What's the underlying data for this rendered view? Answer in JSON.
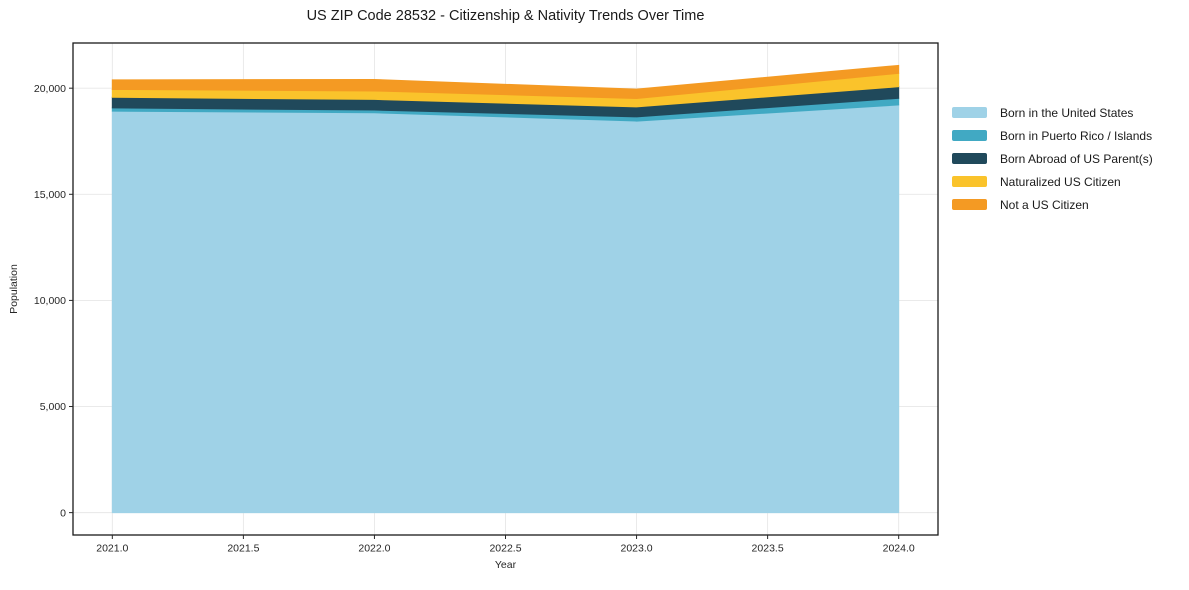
{
  "title": "US ZIP Code 28532 - Citizenship & Nativity Trends Over Time",
  "chart_data": {
    "type": "area",
    "stacked": true,
    "title": "US ZIP Code 28532 - Citizenship & Nativity Trends Over Time",
    "xlabel": "Year",
    "ylabel": "Population",
    "x": [
      2021,
      2022,
      2023,
      2024
    ],
    "series": [
      {
        "name": "Born in the United States",
        "color": "#9fd2e7",
        "values": [
          18920,
          18840,
          18450,
          19210
        ]
      },
      {
        "name": "Born in Puerto Rico / Islands",
        "color": "#41a9c3",
        "values": [
          150,
          130,
          200,
          315
        ]
      },
      {
        "name": "Born Abroad of US Parent(s)",
        "color": "#20495b",
        "values": [
          500,
          500,
          470,
          545
        ]
      },
      {
        "name": "Naturalized US Citizen",
        "color": "#fac32b",
        "values": [
          370,
          400,
          395,
          630
        ]
      },
      {
        "name": "Not a US Citizen",
        "color": "#f49a23",
        "values": [
          450,
          540,
          440,
          375
        ]
      }
    ],
    "totals": [
      20390,
      20410,
      19955,
      21075
    ],
    "xlim": [
      2020.85,
      2024.15
    ],
    "ylim": [
      -1054,
      22129
    ],
    "xtick_values": [
      2021.0,
      2021.5,
      2022.0,
      2022.5,
      2023.0,
      2023.5,
      2024.0
    ],
    "xtick_labels": [
      "2021.0",
      "2021.5",
      "2022.0",
      "2022.5",
      "2023.0",
      "2023.5",
      "2024.0"
    ],
    "ytick_values": [
      0,
      5000,
      10000,
      15000,
      20000
    ],
    "ytick_labels": [
      "0",
      "5,000",
      "10,000",
      "15,000",
      "20,000"
    ],
    "grid": true,
    "legend_position": "right-outside"
  },
  "style": {
    "background": "#ffffff",
    "grid_color": "#e7e7e7",
    "spine_color": "#1a1a1a",
    "tick_color": "#262626",
    "text_color": "#1a1a1a"
  }
}
